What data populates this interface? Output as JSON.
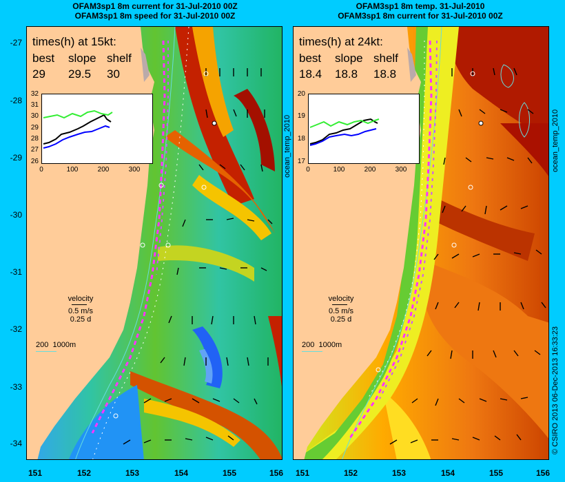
{
  "header_left": {
    "line1": "OFAM3sp1 8m current for 31-Jul-2010 00Z",
    "line2": "OFAM3sp1 8m speed for 31-Jul-2010 00Z"
  },
  "header_right": {
    "line1": "OFAM3sp1 8m temp. 31-Jul-2010",
    "line2": "OFAM3sp1 8m current for 31-Jul-2010 00Z"
  },
  "lat_labels": [
    "-27",
    "-28",
    "-29",
    "-30",
    "-31",
    "-32",
    "-33",
    "-34"
  ],
  "lon_labels": [
    "151",
    "152",
    "153",
    "154",
    "155",
    "156"
  ],
  "left": {
    "times_title": "times(h) at 15kt:",
    "col_heads": [
      "best",
      "slope",
      "shelf"
    ],
    "col_vals": [
      "29",
      "29.5",
      "30"
    ],
    "inset_y": [
      "32",
      "31",
      "30",
      "29",
      "28",
      "27",
      "26"
    ],
    "inset_x": [
      "0",
      "100",
      "200",
      "300"
    ],
    "side_label": "ocean_temp_2010"
  },
  "right": {
    "times_title": "times(h) at 24kt:",
    "col_heads": [
      "best",
      "slope",
      "shelf"
    ],
    "col_vals": [
      "18.4",
      "18.8",
      "18.8"
    ],
    "inset_y": [
      "20",
      "19",
      "18",
      "17"
    ],
    "inset_x": [
      "0",
      "100",
      "200",
      "300"
    ],
    "side_label": "ocean_temp_2010"
  },
  "velocity": {
    "title": "velocity",
    "speed": "0.5 m/s",
    "time": "0.25 d"
  },
  "depth_scale": {
    "a": "200",
    "b": "1000m"
  },
  "credit": "© CSIRO 2013   06-Dec-2013 16:33:23",
  "colors": {
    "background": "#00ccff",
    "land": "#ffcc99",
    "route": "#ff33ff",
    "contour": "#66dddd"
  }
}
